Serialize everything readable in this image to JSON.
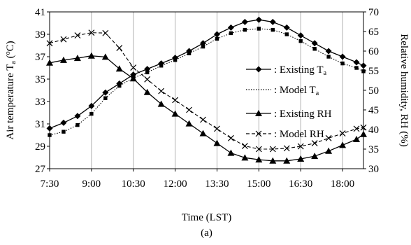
{
  "chart_data": {
    "type": "line",
    "caption": "(a)",
    "xlabel": "Time (LST)",
    "x_ticks": [
      "7:30",
      "9:00",
      "10:30",
      "12:00",
      "13:30",
      "15:00",
      "16:30",
      "18:00"
    ],
    "x_range": [
      "7:30",
      "18:45"
    ],
    "y_left": {
      "label_parts": [
        "Air temperature T",
        "a",
        " (",
        "o",
        "C)"
      ],
      "range": [
        27,
        41
      ],
      "ticks": [
        "27",
        "29",
        "31",
        "33",
        "35",
        "37",
        "39",
        "41"
      ]
    },
    "y_right": {
      "label": "Relative humidity, RH (%)",
      "range": [
        30,
        70
      ],
      "ticks": [
        "30",
        "35",
        "40",
        "45",
        "50",
        "55",
        "60",
        "65",
        "70"
      ]
    },
    "grid": "vertical",
    "legend_position": "right",
    "x": [
      "7:30",
      "8:00",
      "8:30",
      "9:00",
      "9:30",
      "10:00",
      "10:30",
      "11:00",
      "11:30",
      "12:00",
      "12:30",
      "13:00",
      "13:30",
      "14:00",
      "14:30",
      "15:00",
      "15:30",
      "16:00",
      "16:30",
      "17:00",
      "17:30",
      "18:00",
      "18:30",
      "18:45"
    ],
    "series": [
      {
        "name_parts": [
          ": Existing T",
          "a"
        ],
        "axis": "left",
        "style": "solid",
        "marker": "diamond",
        "color": "#000000",
        "values": [
          30.6,
          31.1,
          31.7,
          32.6,
          33.8,
          34.6,
          35.4,
          35.9,
          36.4,
          36.9,
          37.5,
          38.2,
          39.0,
          39.6,
          40.1,
          40.3,
          40.1,
          39.6,
          38.9,
          38.2,
          37.5,
          37.0,
          36.5,
          36.2
        ]
      },
      {
        "name_parts": [
          ": Model T",
          "a"
        ],
        "axis": "left",
        "style": "dotted",
        "marker": "square",
        "color": "#000000",
        "values": [
          30.0,
          30.3,
          30.9,
          31.9,
          33.3,
          34.4,
          35.1,
          35.6,
          36.2,
          36.7,
          37.3,
          37.9,
          38.6,
          39.1,
          39.4,
          39.5,
          39.4,
          39.0,
          38.4,
          37.7,
          37.0,
          36.4,
          36.0,
          35.7
        ]
      },
      {
        "name": ": Existing RH",
        "axis": "right",
        "style": "solid",
        "marker": "triangle",
        "color": "#000000",
        "values": [
          57,
          57.7,
          58.2,
          58.8,
          58.5,
          55.5,
          53.0,
          49.5,
          46.5,
          44.0,
          41.5,
          39.0,
          36.5,
          34.0,
          32.8,
          32.3,
          32.0,
          32.0,
          32.5,
          33.2,
          34.5,
          36.0,
          37.5,
          38.8
        ]
      },
      {
        "name": ": Model RH",
        "axis": "right",
        "style": "dashed",
        "marker": "x",
        "color": "#000000",
        "values": [
          62,
          63,
          64,
          64.7,
          64.6,
          60.8,
          55.8,
          52.8,
          49.8,
          47.5,
          45.0,
          42.5,
          40.2,
          37.8,
          35.8,
          35.0,
          35.0,
          35.2,
          35.7,
          36.5,
          37.8,
          39.0,
          40.2,
          40.5
        ]
      }
    ]
  }
}
